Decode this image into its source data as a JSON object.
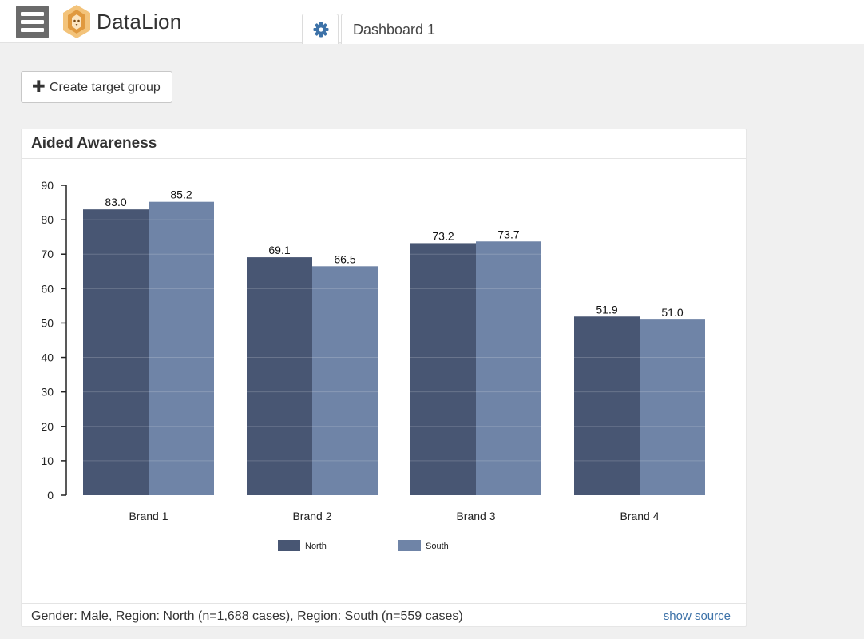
{
  "app": {
    "brand": "DataLion"
  },
  "tabs": {
    "active": "Dashboard 1"
  },
  "toolbar": {
    "create_target_group": "Create target group"
  },
  "widget": {
    "title": "Aided Awareness",
    "footer": "Gender: Male, Region: North (n=1,688 cases), Region: South (n=559 cases)",
    "show_source": "show source"
  },
  "colors": {
    "north": "#485673",
    "south": "#6f84a7",
    "accent": "#3d72a8"
  },
  "chart_data": {
    "type": "bar",
    "categories": [
      "Brand 1",
      "Brand 2",
      "Brand 3",
      "Brand 4"
    ],
    "series": [
      {
        "name": "North",
        "values": [
          83.0,
          69.1,
          73.2,
          51.9
        ]
      },
      {
        "name": "South",
        "values": [
          85.2,
          66.5,
          73.7,
          51.0
        ]
      }
    ],
    "yticks": [
      0,
      10,
      20,
      30,
      40,
      50,
      60,
      70,
      80,
      90
    ],
    "ylim": [
      0,
      90
    ],
    "legend": "bottom-center",
    "grid": false
  }
}
